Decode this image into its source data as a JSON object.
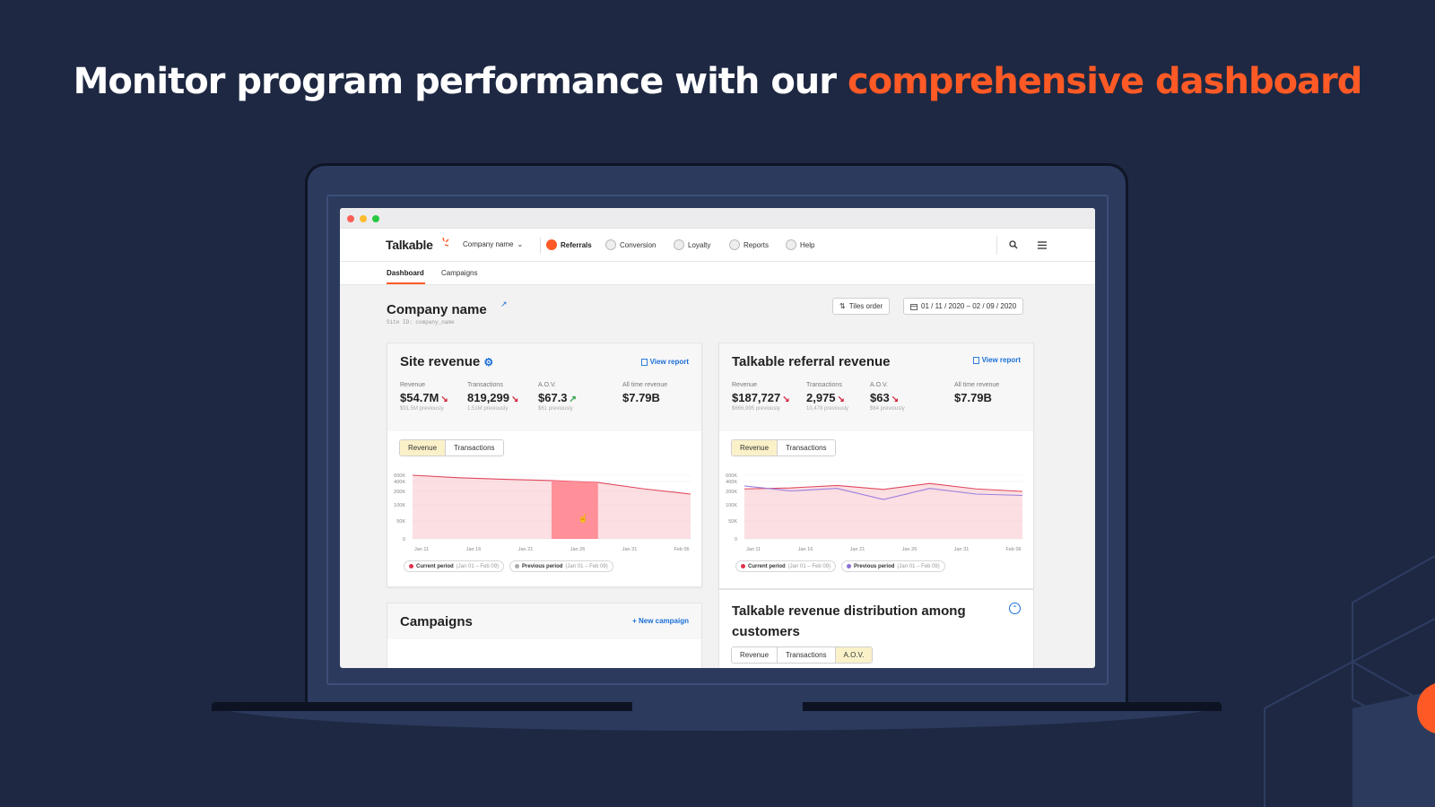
{
  "headline": {
    "main": "Monitor program performance with our ",
    "accent": "comprehensive dashboard"
  },
  "colors": {
    "background": "#1e2842",
    "accent": "#ff5a26",
    "link": "#1a6fd6",
    "down": "#d4233a",
    "up": "#2a9d46"
  },
  "app": {
    "logo": "Talkable",
    "company_menu": "Company name",
    "nav": [
      {
        "label": "Referrals",
        "icon": "referrals-icon",
        "active": true
      },
      {
        "label": "Conversion",
        "icon": "conversion-icon",
        "active": false
      },
      {
        "label": "Loyalty",
        "icon": "loyalty-icon",
        "active": false
      },
      {
        "label": "Reports",
        "icon": "reports-icon",
        "active": false
      },
      {
        "label": "Help",
        "icon": "help-icon",
        "active": false
      }
    ],
    "subnav": [
      {
        "label": "Dashboard",
        "active": true
      },
      {
        "label": "Campaigns",
        "active": false
      }
    ],
    "page": {
      "title": "Company name",
      "site_id": "Site ID: company_name",
      "tiles_order": "Tiles order",
      "date_range": "01 / 11 / 2020 – 02 / 09 / 2020"
    },
    "site_revenue": {
      "title": "Site revenue",
      "view_report": "View report",
      "metrics": [
        {
          "label": "Revenue",
          "value": "$54.7M",
          "trend": "down",
          "prev": "$91.5M previously"
        },
        {
          "label": "Transactions",
          "value": "819,299",
          "trend": "down",
          "prev": "1.51M previously"
        },
        {
          "label": "A.O.V.",
          "value": "$67.3",
          "trend": "up",
          "prev": "$61 previously"
        },
        {
          "label": "All time revenue",
          "value": "$7.79B",
          "trend": "none",
          "prev": ""
        }
      ],
      "tabs": [
        {
          "label": "Revenue",
          "active": true
        },
        {
          "label": "Transactions",
          "active": false
        }
      ],
      "legend": [
        {
          "name": "Current period",
          "range": "(Jan 01 – Feb 09)",
          "color": "#e0324b"
        },
        {
          "name": "Previous period",
          "range": "(Jan 01 – Feb 09)",
          "color": "#aaaaaa"
        }
      ]
    },
    "referral_revenue": {
      "title": "Talkable referral revenue",
      "view_report": "View report",
      "metrics": [
        {
          "label": "Revenue",
          "value": "$187,727",
          "trend": "down",
          "prev": "$666,995 previously"
        },
        {
          "label": "Transactions",
          "value": "2,975",
          "trend": "down",
          "prev": "10,478 previously"
        },
        {
          "label": "A.O.V.",
          "value": "$63",
          "trend": "down",
          "prev": "$64 previously"
        },
        {
          "label": "All time revenue",
          "value": "$7.79B",
          "trend": "none",
          "prev": ""
        }
      ],
      "tabs": [
        {
          "label": "Revenue",
          "active": true
        },
        {
          "label": "Transactions",
          "active": false
        }
      ],
      "legend": [
        {
          "name": "Current period",
          "range": "(Jan 01 – Feb 09)",
          "color": "#e0324b"
        },
        {
          "name": "Previous period",
          "range": "(Jan 01 – Feb 09)",
          "color": "#8b6fd6"
        }
      ]
    },
    "campaigns": {
      "title": "Campaigns",
      "new_campaign": "New campaign"
    },
    "distribution": {
      "title": "Talkable revenue distribution among customers",
      "tabs": [
        {
          "label": "Revenue",
          "active": false
        },
        {
          "label": "Transactions",
          "active": false
        },
        {
          "label": "A.O.V.",
          "active": true
        }
      ]
    }
  },
  "chart_data": [
    {
      "type": "area",
      "categories": [
        "Jan 11",
        "Jan 16",
        "Jan 21",
        "Jan 26",
        "Jan 31",
        "Feb 06"
      ],
      "yticks": [
        "0",
        "50K",
        "100K",
        "200K",
        "400K",
        "600K"
      ],
      "x": [
        0,
        1,
        2,
        3,
        4,
        5,
        6
      ],
      "series": [
        {
          "name": "Current period",
          "values": [
            600,
            520,
            470,
            430,
            380,
            250,
            180
          ]
        }
      ],
      "highlight_range": [
        3,
        4
      ],
      "ylim": [
        0,
        600
      ]
    },
    {
      "type": "area",
      "categories": [
        "Jan 11",
        "Jan 16",
        "Jan 21",
        "Jan 26",
        "Jan 31",
        "Feb 06"
      ],
      "yticks": [
        "0",
        "50K",
        "100K",
        "200K",
        "400K",
        "600K"
      ],
      "x": [
        0,
        1,
        2,
        3,
        4,
        5,
        6
      ],
      "series": [
        {
          "name": "Current period",
          "values": [
            250,
            270,
            320,
            240,
            360,
            250,
            200
          ]
        },
        {
          "name": "Previous period",
          "values": [
            310,
            210,
            260,
            140,
            260,
            180,
            170
          ]
        }
      ],
      "ylim": [
        0,
        600
      ]
    }
  ]
}
